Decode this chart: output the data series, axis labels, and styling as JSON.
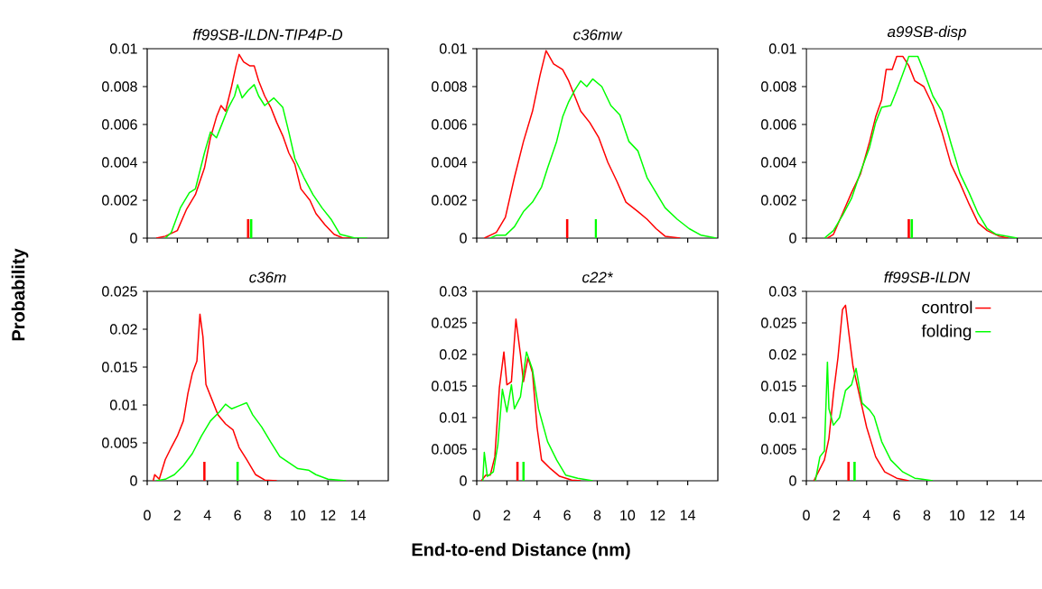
{
  "chart_data": [
    {
      "type": "line",
      "title": "ff99SB-ILDN-TIP4P-D",
      "ylabel": "Probability",
      "xlim": [
        0,
        16
      ],
      "xticks": [
        0,
        2,
        4,
        6,
        8,
        10,
        12,
        14
      ],
      "ylim": [
        0,
        0.01
      ],
      "yticks": [
        0,
        0.002,
        0.004,
        0.006,
        0.008,
        0.01
      ],
      "tick_labels": "y",
      "marker": "none",
      "ref_lines": [
        {
          "axis": "x",
          "value": 6.7,
          "color": "#ff0000"
        },
        {
          "axis": "x",
          "value": 6.9,
          "color": "#00ff00"
        }
      ],
      "series": [
        {
          "color": "#ff0000",
          "x": [
            0.6,
            1.2,
            2.0,
            2.6,
            3.2,
            3.8,
            4.2,
            4.6,
            4.9,
            5.2,
            5.6,
            5.9,
            6.1,
            6.4,
            6.8,
            7.1,
            7.4,
            7.8,
            8.2,
            8.6,
            9.0,
            9.4,
            9.8,
            10.2,
            10.8,
            11.2,
            11.8,
            12.4,
            13.0,
            13.6
          ],
          "values": [
            0,
            0.0001,
            0.0004,
            0.0015,
            0.0023,
            0.0037,
            0.0053,
            0.0064,
            0.007,
            0.0067,
            0.008,
            0.0091,
            0.0097,
            0.0093,
            0.0091,
            0.0091,
            0.0083,
            0.0075,
            0.0069,
            0.0061,
            0.0054,
            0.0045,
            0.0039,
            0.0026,
            0.002,
            0.0013,
            0.0007,
            0.0002,
            0,
            0
          ]
        },
        {
          "color": "#00ff00",
          "x": [
            1.2,
            1.6,
            2.2,
            2.8,
            3.2,
            3.8,
            4.2,
            4.6,
            5.0,
            5.4,
            5.8,
            6.0,
            6.3,
            6.7,
            7.1,
            7.4,
            7.8,
            8.4,
            9.0,
            9.4,
            9.8,
            10.4,
            11.0,
            11.6,
            12.2,
            12.8,
            13.8,
            14.6
          ],
          "values": [
            0,
            0.0003,
            0.0016,
            0.0024,
            0.0026,
            0.0045,
            0.0056,
            0.0053,
            0.0061,
            0.0069,
            0.0075,
            0.0081,
            0.0074,
            0.0078,
            0.0081,
            0.0075,
            0.007,
            0.0074,
            0.0069,
            0.0056,
            0.0042,
            0.0032,
            0.0023,
            0.0016,
            0.001,
            0.0002,
            0,
            0
          ]
        }
      ]
    },
    {
      "type": "line",
      "title": "c36mw",
      "xlim": [
        0,
        16
      ],
      "xticks": [
        0,
        2,
        4,
        6,
        8,
        10,
        12,
        14
      ],
      "ylim": [
        0,
        0.01
      ],
      "yticks": [
        0,
        0.002,
        0.004,
        0.006,
        0.008,
        0.01
      ],
      "tick_labels": "y",
      "marker": "none",
      "ref_lines": [
        {
          "axis": "x",
          "value": 6.0,
          "color": "#ff0000"
        },
        {
          "axis": "x",
          "value": 7.9,
          "color": "#00ff00"
        }
      ],
      "series": [
        {
          "color": "#ff0000",
          "x": [
            0.5,
            1.3,
            1.9,
            2.5,
            3.1,
            3.7,
            4.2,
            4.6,
            5.1,
            5.7,
            6.1,
            6.5,
            6.9,
            7.5,
            8.1,
            8.7,
            9.3,
            9.9,
            10.7,
            11.3,
            11.9,
            12.5,
            13.5
          ],
          "values": [
            0,
            0.0003,
            0.0011,
            0.0032,
            0.0051,
            0.0067,
            0.0086,
            0.0099,
            0.0092,
            0.0089,
            0.0083,
            0.0075,
            0.0067,
            0.0061,
            0.0053,
            0.004,
            0.003,
            0.0019,
            0.0014,
            0.001,
            0.0005,
            0.0001,
            0
          ]
        },
        {
          "color": "#00ff00",
          "x": [
            0.9,
            1.3,
            1.9,
            2.5,
            3.1,
            3.7,
            4.3,
            4.7,
            5.3,
            5.7,
            6.1,
            6.5,
            6.9,
            7.3,
            7.7,
            8.3,
            8.9,
            9.5,
            10.1,
            10.7,
            11.3,
            11.9,
            12.5,
            13.3,
            14.1,
            14.9,
            15.9
          ],
          "values": [
            0,
            0.00015,
            0.00015,
            0.0006,
            0.0014,
            0.0019,
            0.0027,
            0.0037,
            0.0051,
            0.0064,
            0.0072,
            0.0078,
            0.0083,
            0.008,
            0.0084,
            0.008,
            0.007,
            0.0065,
            0.0051,
            0.0046,
            0.0032,
            0.0024,
            0.0016,
            0.001,
            0.0005,
            0.00015,
            0
          ]
        }
      ]
    },
    {
      "type": "line",
      "title": "a99SB-disp",
      "xlim": [
        0,
        16
      ],
      "xticks": [
        0,
        2,
        4,
        6,
        8,
        10,
        12,
        14
      ],
      "ylim": [
        0,
        0.01
      ],
      "yticks": [
        0,
        0.002,
        0.004,
        0.006,
        0.008,
        0.01
      ],
      "tick_labels": "y",
      "marker": "none",
      "ref_lines": [
        {
          "axis": "x",
          "value": 6.8,
          "color": "#ff0000"
        },
        {
          "axis": "x",
          "value": 7.0,
          "color": "#00ff00"
        }
      ],
      "series": [
        {
          "color": "#ff0000",
          "x": [
            1.4,
            1.8,
            2.4,
            3.0,
            3.6,
            4.2,
            4.6,
            5.0,
            5.3,
            5.7,
            6.0,
            6.4,
            6.8,
            7.2,
            7.8,
            8.4,
            9.0,
            9.6,
            10.2,
            10.8,
            11.4,
            12.0,
            12.8,
            13.4
          ],
          "values": [
            0,
            0.0002,
            0.0013,
            0.0024,
            0.0034,
            0.0051,
            0.0064,
            0.0073,
            0.0089,
            0.0089,
            0.0096,
            0.0096,
            0.0091,
            0.0083,
            0.008,
            0.007,
            0.0056,
            0.0039,
            0.0029,
            0.0018,
            0.0008,
            0.0004,
            0.0001,
            0
          ]
        },
        {
          "color": "#00ff00",
          "x": [
            1.2,
            1.8,
            2.4,
            3.0,
            3.6,
            4.2,
            4.6,
            5.0,
            5.6,
            6.0,
            6.6,
            6.8,
            7.4,
            7.8,
            8.4,
            9.0,
            9.6,
            10.2,
            10.8,
            11.4,
            12.0,
            12.6,
            14.0
          ],
          "values": [
            0,
            0.0004,
            0.0012,
            0.0021,
            0.0035,
            0.0048,
            0.0061,
            0.0069,
            0.007,
            0.0078,
            0.0091,
            0.0096,
            0.0096,
            0.0088,
            0.0075,
            0.0067,
            0.005,
            0.0034,
            0.0024,
            0.0013,
            0.0005,
            0.0002,
            0
          ]
        }
      ]
    },
    {
      "type": "line",
      "title": "c36m",
      "xlim": [
        0,
        16
      ],
      "xticks": [
        0,
        2,
        4,
        6,
        8,
        10,
        12,
        14
      ],
      "ylim": [
        0,
        0.025
      ],
      "yticks": [
        0,
        0.005,
        0.01,
        0.015,
        0.02,
        0.025
      ],
      "marker": "none",
      "ref_lines": [
        {
          "axis": "x",
          "value": 3.8,
          "color": "#ff0000"
        },
        {
          "axis": "x",
          "value": 6.0,
          "color": "#00ff00"
        }
      ],
      "series": [
        {
          "color": "#ff0000",
          "x": [
            0.4,
            0.5,
            0.8,
            1.2,
            1.6,
            2.0,
            2.4,
            2.7,
            3.0,
            3.3,
            3.5,
            3.7,
            3.9,
            4.3,
            4.7,
            5.2,
            5.7,
            6.1,
            6.6,
            7.2,
            7.8,
            8.6
          ],
          "values": [
            0,
            0.0008,
            0.0002,
            0.0028,
            0.0044,
            0.0059,
            0.0079,
            0.0115,
            0.0142,
            0.0158,
            0.022,
            0.019,
            0.0127,
            0.0107,
            0.0087,
            0.0075,
            0.0067,
            0.0044,
            0.0028,
            0.0008,
            0.0001,
            0
          ]
        },
        {
          "color": "#00ff00",
          "x": [
            0.6,
            1.2,
            1.8,
            2.4,
            3.0,
            3.6,
            4.2,
            4.8,
            5.2,
            5.6,
            6.1,
            6.6,
            7.0,
            7.6,
            8.2,
            8.8,
            9.4,
            10.0,
            10.7,
            11.2,
            12.0,
            13.2
          ],
          "values": [
            0,
            0.0002,
            0.0008,
            0.002,
            0.0036,
            0.0059,
            0.0079,
            0.0091,
            0.0101,
            0.0095,
            0.0099,
            0.0103,
            0.0087,
            0.0071,
            0.0051,
            0.0032,
            0.0024,
            0.0016,
            0.0014,
            0.0008,
            0.0002,
            0
          ]
        }
      ]
    },
    {
      "type": "line",
      "title": "c22*",
      "xlabel": "End-to-end Distance (nm)",
      "xlim": [
        0,
        16
      ],
      "xticks": [
        0,
        2,
        4,
        6,
        8,
        10,
        12,
        14
      ],
      "ylim": [
        0,
        0.03
      ],
      "yticks": [
        0,
        0.005,
        0.01,
        0.015,
        0.02,
        0.025,
        0.03
      ],
      "marker": "none",
      "ref_lines": [
        {
          "axis": "x",
          "value": 2.7,
          "color": "#ff0000"
        },
        {
          "axis": "x",
          "value": 3.1,
          "color": "#00ff00"
        }
      ],
      "series": [
        {
          "color": "#ff0000",
          "x": [
            0.3,
            0.6,
            0.9,
            1.2,
            1.5,
            1.8,
            2.0,
            2.3,
            2.6,
            2.9,
            3.1,
            3.4,
            3.7,
            4.0,
            4.3,
            4.9,
            5.5,
            6.3,
            6.9
          ],
          "values": [
            0,
            0.0009,
            0.0009,
            0.0038,
            0.0147,
            0.0204,
            0.0152,
            0.0157,
            0.0256,
            0.02,
            0.0157,
            0.0195,
            0.0171,
            0.0085,
            0.0033,
            0.0019,
            0.0007,
            0.0001,
            0
          ]
        },
        {
          "color": "#00ff00",
          "x": [
            0.4,
            0.5,
            0.7,
            1.1,
            1.4,
            1.7,
            2.0,
            2.3,
            2.5,
            2.9,
            3.3,
            3.7,
            4.1,
            4.7,
            5.3,
            5.9,
            6.7,
            7.7
          ],
          "values": [
            0,
            0.0045,
            0.0007,
            0.0014,
            0.0057,
            0.0145,
            0.0109,
            0.0152,
            0.0114,
            0.0133,
            0.0204,
            0.0176,
            0.0114,
            0.0062,
            0.0033,
            0.0009,
            0.0004,
            0
          ]
        }
      ]
    },
    {
      "type": "line",
      "title": "ff99SB-ILDN",
      "xlim": [
        0,
        16
      ],
      "xticks": [
        0,
        2,
        4,
        6,
        8,
        10,
        12,
        14
      ],
      "ylim": [
        0,
        0.03
      ],
      "yticks": [
        0,
        0.005,
        0.01,
        0.015,
        0.02,
        0.025,
        0.03
      ],
      "marker": "none",
      "legend": "top right",
      "ref_lines": [
        {
          "axis": "x",
          "value": 2.8,
          "color": "#ff0000"
        },
        {
          "axis": "x",
          "value": 3.2,
          "color": "#00ff00"
        }
      ],
      "series": [
        {
          "name": "control",
          "color": "#ff0000",
          "x": [
            0.5,
            0.8,
            1.2,
            1.5,
            1.8,
            2.1,
            2.4,
            2.6,
            2.8,
            3.1,
            3.5,
            4.0,
            4.6,
            5.2,
            6.0,
            6.8
          ],
          "values": [
            0,
            0.0014,
            0.0033,
            0.0067,
            0.0138,
            0.0195,
            0.0271,
            0.0278,
            0.0238,
            0.0181,
            0.0138,
            0.0085,
            0.0038,
            0.0014,
            0.0004,
            0
          ]
        },
        {
          "name": "folding",
          "color": "#00ff00",
          "x": [
            0.6,
            0.9,
            1.2,
            1.4,
            1.5,
            1.8,
            2.2,
            2.6,
            3.0,
            3.3,
            3.7,
            4.2,
            4.5,
            5.0,
            5.6,
            6.4,
            7.2,
            8.4
          ],
          "values": [
            0,
            0.0038,
            0.0047,
            0.0188,
            0.0114,
            0.0088,
            0.01,
            0.0143,
            0.0152,
            0.0178,
            0.0123,
            0.0112,
            0.0102,
            0.0062,
            0.0033,
            0.0014,
            0.0004,
            0
          ]
        }
      ]
    }
  ]
}
